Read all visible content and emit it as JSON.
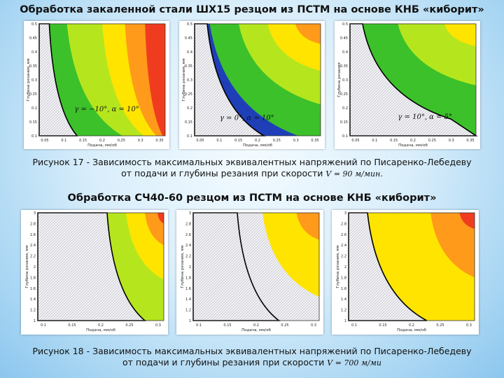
{
  "colors": {
    "blue": "#1f3fb8",
    "green": "#3cc12a",
    "lime": "#b5e61d",
    "yellow": "#ffe400",
    "orange": "#ff9a1a",
    "red": "#f03c1e",
    "black": "#000000"
  },
  "section1": {
    "title": "Обработка закаленной стали ШХ15 резцом из ПСТМ на основе КНБ «киборит»",
    "caption_line1": "Рисунок 17 - Зависимость максимальных эквивалентных напряжений по Писаренко-Лебедеву",
    "caption_line2": "от подачи и глубины резания при скорости",
    "formula": "V = 90 м/мин."
  },
  "section2": {
    "title": "Обработка СЧ40-60 резцом из ПСТМ на основе КНБ «киборит»",
    "caption_line1": "Рисунок 18 - Зависимость максимальных эквивалентных напряжений по Писаренко-Лебедеву",
    "caption_line2": "от подачи и глубины резания при скорости",
    "formula": "V = 700 м/ми"
  },
  "chart_data": [
    {
      "type": "heatmap",
      "xlabel": "Подача, мм/об",
      "ylabel": "Глубина резания, мм",
      "x_ticks": [
        "0.05",
        "0.1",
        "0.15",
        "0.2",
        "0.25",
        "0.3",
        "0.35"
      ],
      "y_ticks": [
        "0.5",
        "0.45",
        "0.4",
        "0.35",
        "0.3",
        "0.25",
        "0.2",
        "0.15",
        "0.1"
      ],
      "annotation": "γ = −10°,   α = 10°",
      "bands": [
        "white",
        "green",
        "lime",
        "yellow",
        "orange",
        "red"
      ]
    },
    {
      "type": "heatmap",
      "xlabel": "Подача, мм/об",
      "ylabel": "Глубина резания, мм",
      "x_ticks": [
        "0.05",
        "0.1",
        "0.15",
        "0.2",
        "0.25",
        "0.3",
        "0.35"
      ],
      "y_ticks": [
        "0.5",
        "0.45",
        "0.4",
        "0.35",
        "0.3",
        "0.25",
        "0.2",
        "0.15",
        "0.1"
      ],
      "annotation": "γ = 0°,   α = 10°",
      "bands": [
        "white",
        "blue",
        "green",
        "lime",
        "yellow",
        "orange"
      ]
    },
    {
      "type": "heatmap",
      "xlabel": "Подача, мм/об",
      "ylabel": "Глубина резания",
      "x_ticks": [
        "0.05",
        "0.1",
        "0.15",
        "0.2",
        "0.25",
        "0.3",
        "0.35"
      ],
      "y_ticks": [
        "0.5",
        "0.45",
        "0.4",
        "0.35",
        "0.3",
        "0.25",
        "0.2",
        "0.15",
        "0.1"
      ],
      "annotation": "γ = 10°,   α = 5°",
      "bands": [
        "white",
        "green",
        "lime",
        "yellow"
      ]
    },
    {
      "type": "heatmap",
      "xlabel": "Подача, мм/об",
      "ylabel": "Глубина резания, мм",
      "x_ticks": [
        "0.1",
        "0.15",
        "0.2",
        "0.25",
        "0.3"
      ],
      "y_ticks": [
        "3",
        "2.8",
        "2.6",
        "2.4",
        "2.2",
        "2",
        "1.8",
        "1.6",
        "1.4",
        "1.2",
        "1"
      ],
      "bands": [
        "white",
        "lime",
        "yellow",
        "orange",
        "red"
      ]
    },
    {
      "type": "heatmap",
      "xlabel": "Подача, мм/об",
      "ylabel": "Глубина резания, мм",
      "x_ticks": [
        "0.1",
        "0.15",
        "0.2",
        "0.25",
        "0.3"
      ],
      "y_ticks": [
        "3",
        "2.8",
        "2.6",
        "2.4",
        "2.2",
        "2",
        "1.8",
        "1.6",
        "1.4",
        "1.2",
        "1"
      ],
      "bands": [
        "white",
        "white",
        "yellow",
        "orange"
      ]
    },
    {
      "type": "heatmap",
      "xlabel": "Подача, мм/об",
      "ylabel": "Глубина резания, мм",
      "x_ticks": [
        "0.1",
        "0.15",
        "0.2",
        "0.25",
        "0.3"
      ],
      "y_ticks": [
        "3",
        "2.8",
        "2.6",
        "2.4",
        "2.2",
        "2",
        "1.8",
        "1.6",
        "1.4",
        "1.2",
        "1"
      ],
      "bands": [
        "white",
        "yellow",
        "orange",
        "red"
      ]
    }
  ]
}
